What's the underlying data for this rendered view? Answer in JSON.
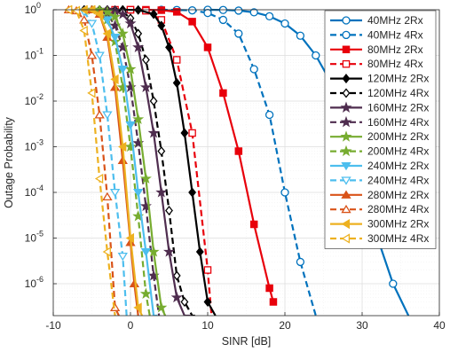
{
  "chart_data": {
    "type": "line",
    "title": "",
    "xlabel": "SINR [dB]",
    "ylabel": "Outage Probability",
    "xscale": "linear",
    "yscale": "log",
    "xlim": [
      -10,
      40
    ],
    "ylim": [
      2e-07,
      1
    ],
    "xticks": [
      -10,
      0,
      10,
      20,
      30,
      40
    ],
    "xtick_labels": [
      "-10",
      "0",
      "10",
      "20",
      "30",
      "40"
    ],
    "yticks": [
      1e-06,
      1e-05,
      0.0001,
      0.001,
      0.01,
      0.1,
      1
    ],
    "ytick_labels": [
      {
        "base": "10",
        "exp": "-6"
      },
      {
        "base": "10",
        "exp": "-5"
      },
      {
        "base": "10",
        "exp": "-4"
      },
      {
        "base": "10",
        "exp": "-3"
      },
      {
        "base": "10",
        "exp": "-2"
      },
      {
        "base": "10",
        "exp": "-1"
      },
      {
        "base": "10",
        "exp": "0"
      }
    ],
    "grid": true,
    "legend_position": "top-right",
    "series": [
      {
        "name": "40MHz 2Rx",
        "color": "#0072BD",
        "dash": "solid",
        "marker": "circle",
        "marker_fill": false,
        "x": [
          10,
          12,
          14,
          16,
          18,
          20,
          22,
          24,
          26,
          28,
          30,
          32,
          34,
          36
        ],
        "y": [
          1,
          0.99,
          0.96,
          0.88,
          0.72,
          0.5,
          0.27,
          0.1,
          0.025,
          0.004,
          0.0003,
          1e-05,
          1e-06,
          2e-07
        ]
      },
      {
        "name": "40MHz 4Rx",
        "color": "#0072BD",
        "dash": "dashed",
        "marker": "circle",
        "marker_fill": false,
        "x": [
          4,
          6,
          8,
          10,
          12,
          14,
          16,
          18,
          20,
          22,
          24
        ],
        "y": [
          1,
          0.99,
          0.97,
          0.85,
          0.6,
          0.3,
          0.05,
          0.005,
          0.0001,
          3e-06,
          2e-07
        ]
      },
      {
        "name": "80MHz 2Rx",
        "color": "#E8000B",
        "dash": "solid",
        "marker": "square",
        "marker_fill": true,
        "x": [
          0,
          2,
          4,
          6,
          8,
          10,
          12,
          14,
          16,
          18,
          18.5
        ],
        "y": [
          1,
          1,
          0.98,
          0.9,
          0.55,
          0.15,
          0.015,
          0.0008,
          2e-05,
          8e-07,
          4e-07
        ]
      },
      {
        "name": "80MHz 4Rx",
        "color": "#E8000B",
        "dash": "dashed",
        "marker": "square",
        "marker_fill": false,
        "x": [
          -2,
          0,
          2,
          4,
          6,
          8,
          10,
          10.5
        ],
        "y": [
          1,
          1,
          0.95,
          0.6,
          0.08,
          0.002,
          2e-06,
          2e-07
        ]
      },
      {
        "name": "120MHz 2Rx",
        "color": "#000000",
        "dash": "solid",
        "marker": "diamond",
        "marker_fill": true,
        "x": [
          -3,
          -1,
          1,
          3,
          4,
          5,
          6,
          7,
          8,
          9,
          10,
          11
        ],
        "y": [
          1,
          1,
          0.99,
          0.8,
          0.45,
          0.15,
          0.025,
          0.002,
          0.0001,
          5e-06,
          4e-07,
          2e-07
        ]
      },
      {
        "name": "120MHz 4Rx",
        "color": "#000000",
        "dash": "dashed",
        "marker": "diamond",
        "marker_fill": false,
        "x": [
          -6,
          -4,
          -2,
          -1,
          0,
          1,
          2,
          3,
          4,
          5,
          6,
          7,
          8,
          8.5
        ],
        "y": [
          1,
          1,
          0.98,
          0.9,
          0.65,
          0.3,
          0.08,
          0.01,
          0.0008,
          4e-05,
          1.5e-06,
          4e-07,
          2e-07,
          2e-07
        ]
      },
      {
        "name": "160MHz 2Rx",
        "color": "#4F2D4F",
        "dash": "solid",
        "marker": "star",
        "marker_fill": true,
        "x": [
          -3,
          -2,
          -1,
          0,
          1,
          2,
          3,
          4,
          5,
          6,
          7,
          7.8
        ],
        "y": [
          1,
          0.95,
          0.8,
          0.5,
          0.15,
          0.02,
          0.002,
          0.0001,
          5e-06,
          5e-07,
          2e-07,
          2e-07
        ]
      },
      {
        "name": "160MHz 4Rx",
        "color": "#4F2D4F",
        "dash": "dashed",
        "marker": "star",
        "marker_fill": true,
        "x": [
          -5,
          -4,
          -3,
          -2,
          -1,
          0,
          1,
          2,
          3,
          3.7
        ],
        "y": [
          1,
          0.97,
          0.8,
          0.45,
          0.15,
          0.02,
          0.0012,
          5e-05,
          1.5e-06,
          2e-07
        ]
      },
      {
        "name": "200MHz 2Rx",
        "color": "#77AC30",
        "dash": "solid",
        "marker": "star",
        "marker_fill": true,
        "x": [
          -4,
          -3,
          -2,
          -1,
          0,
          1,
          2,
          3,
          4,
          4.5
        ],
        "y": [
          1,
          0.9,
          0.7,
          0.3,
          0.05,
          0.004,
          0.0002,
          5e-06,
          3e-07,
          2e-07
        ]
      },
      {
        "name": "200MHz 4Rx",
        "color": "#77AC30",
        "dash": "dashed",
        "marker": "star",
        "marker_fill": true,
        "x": [
          -5,
          -4,
          -3,
          -2,
          -1,
          0,
          1,
          2,
          2.5
        ],
        "y": [
          1,
          0.9,
          0.6,
          0.2,
          0.02,
          0.001,
          3e-05,
          6e-07,
          2e-07
        ]
      },
      {
        "name": "240MHz 2Rx",
        "color": "#4DBEEE",
        "dash": "solid",
        "marker": "triangle-down",
        "marker_fill": true,
        "x": [
          -3,
          -2,
          -1,
          0,
          1,
          2,
          3,
          3.5
        ],
        "y": [
          0.6,
          0.25,
          0.05,
          0.003,
          0.0001,
          5e-06,
          2e-07,
          2e-07
        ]
      },
      {
        "name": "240MHz 4Rx",
        "color": "#4DBEEE",
        "dash": "dashed",
        "marker": "triangle-down",
        "marker_fill": false,
        "x": [
          -6,
          -5,
          -4,
          -3,
          -2,
          -1,
          -0.5
        ],
        "y": [
          0.9,
          0.5,
          0.1,
          0.005,
          0.0001,
          4e-06,
          2e-07
        ]
      },
      {
        "name": "280MHz 2Rx",
        "color": "#D95319",
        "dash": "solid",
        "marker": "triangle-up",
        "marker_fill": true,
        "x": [
          -5,
          -4,
          -3,
          -2,
          -1,
          0,
          0.5,
          1
        ],
        "y": [
          1,
          0.8,
          0.25,
          0.02,
          0.0005,
          8e-06,
          1e-06,
          2e-07
        ]
      },
      {
        "name": "280MHz 4Rx",
        "color": "#D95319",
        "dash": "dashed",
        "marker": "triangle-up",
        "marker_fill": false,
        "x": [
          -8,
          -7,
          -6,
          -5,
          -4,
          -3,
          -2,
          -1.5
        ],
        "y": [
          1,
          0.95,
          0.6,
          0.1,
          0.005,
          8e-05,
          3e-07,
          2e-07
        ]
      },
      {
        "name": "300MHz 2Rx",
        "color": "#EDB120",
        "dash": "solid",
        "marker": "triangle-left",
        "marker_fill": true,
        "x": [
          -6,
          -5,
          -4,
          -3,
          -2,
          -1,
          0,
          1,
          1.5
        ],
        "y": [
          1,
          1,
          0.8,
          0.3,
          0.03,
          0.001,
          1e-05,
          3e-07,
          2e-07
        ]
      },
      {
        "name": "300MHz 4Rx",
        "color": "#EDB120",
        "dash": "dashed",
        "marker": "triangle-left",
        "marker_fill": false,
        "x": [
          -8,
          -7,
          -6,
          -5,
          -4,
          -3,
          -2
        ],
        "y": [
          1,
          0.95,
          0.35,
          0.015,
          0.0002,
          5e-06,
          2e-07
        ]
      }
    ]
  }
}
